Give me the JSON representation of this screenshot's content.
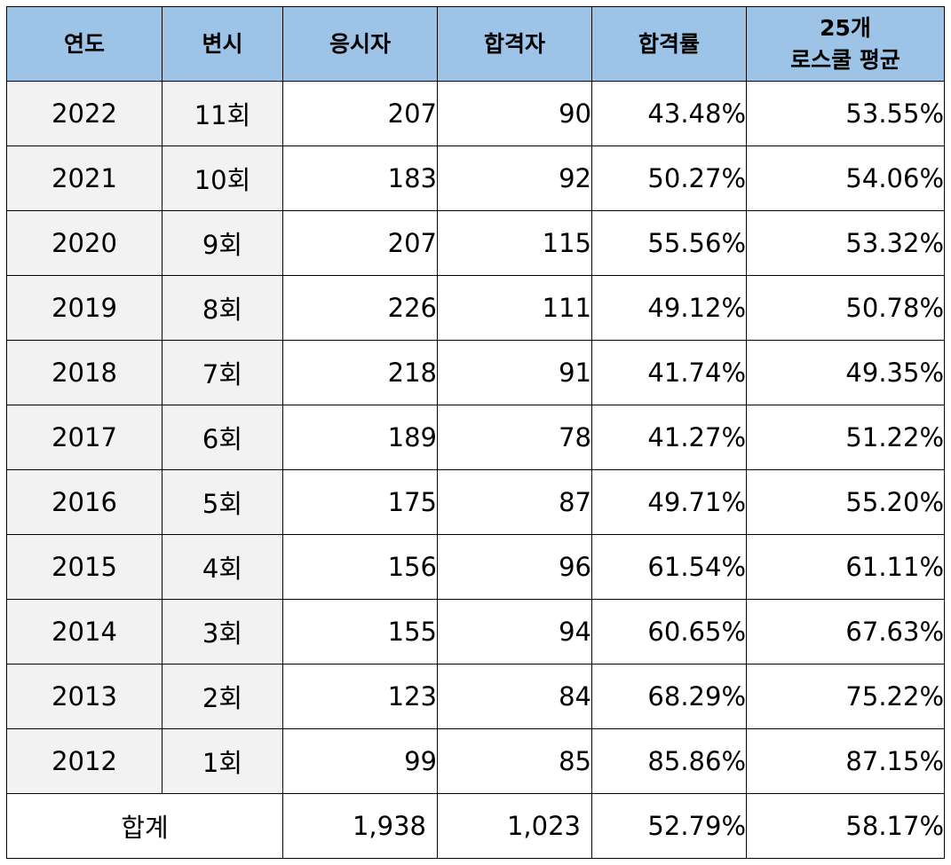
{
  "headers": {
    "year": "연도",
    "session": "변시",
    "applicants": "응시자",
    "passers": "합격자",
    "pass_rate": "합격률",
    "avg_line1": "25개",
    "avg_line2": "로스쿨 평균"
  },
  "rows": [
    {
      "year": "2022",
      "session": "11회",
      "applicants": "207",
      "passers": "90",
      "pass_rate": "43.48%",
      "avg": "53.55%"
    },
    {
      "year": "2021",
      "session": "10회",
      "applicants": "183",
      "passers": "92",
      "pass_rate": "50.27%",
      "avg": "54.06%"
    },
    {
      "year": "2020",
      "session": "9회",
      "applicants": "207",
      "passers": "115",
      "pass_rate": "55.56%",
      "avg": "53.32%"
    },
    {
      "year": "2019",
      "session": "8회",
      "applicants": "226",
      "passers": "111",
      "pass_rate": "49.12%",
      "avg": "50.78%"
    },
    {
      "year": "2018",
      "session": "7회",
      "applicants": "218",
      "passers": "91",
      "pass_rate": "41.74%",
      "avg": "49.35%"
    },
    {
      "year": "2017",
      "session": "6회",
      "applicants": "189",
      "passers": "78",
      "pass_rate": "41.27%",
      "avg": "51.22%"
    },
    {
      "year": "2016",
      "session": "5회",
      "applicants": "175",
      "passers": "87",
      "pass_rate": "49.71%",
      "avg": "55.20%"
    },
    {
      "year": "2015",
      "session": "4회",
      "applicants": "156",
      "passers": "96",
      "pass_rate": "61.54%",
      "avg": "61.11%"
    },
    {
      "year": "2014",
      "session": "3회",
      "applicants": "155",
      "passers": "94",
      "pass_rate": "60.65%",
      "avg": "67.63%"
    },
    {
      "year": "2013",
      "session": "2회",
      "applicants": "123",
      "passers": "84",
      "pass_rate": "68.29%",
      "avg": "75.22%"
    },
    {
      "year": "2012",
      "session": "1회",
      "applicants": "99",
      "passers": "85",
      "pass_rate": "85.86%",
      "avg": "87.15%"
    }
  ],
  "total": {
    "label": "합계",
    "applicants": "1,938",
    "passers": "1,023",
    "pass_rate": "52.79%",
    "avg": "58.17%"
  },
  "colors": {
    "header_bg": "#9dc3e6",
    "label_cell_bg": "#f2f2f2",
    "border": "#000000"
  }
}
